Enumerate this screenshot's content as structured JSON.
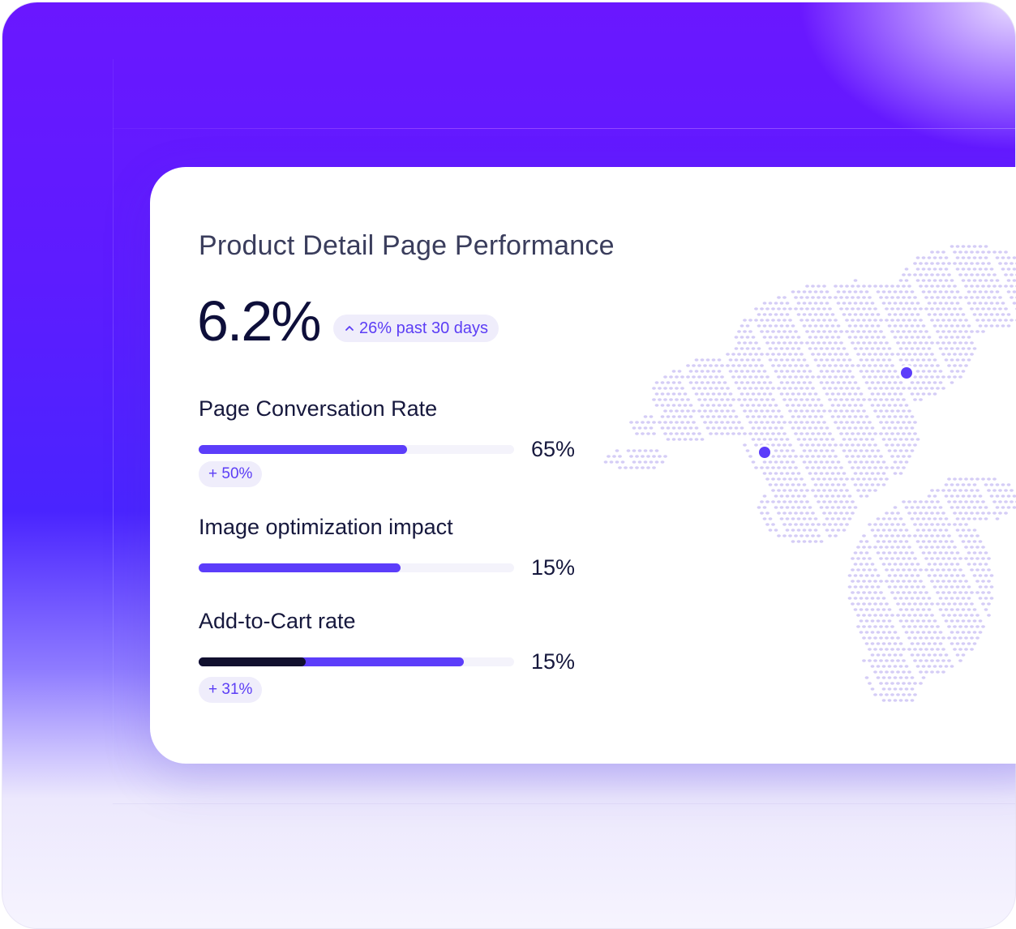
{
  "card": {
    "title": "Product Detail Page Performance",
    "headline_value": "6.2%",
    "trend_label": "26% past 30 days",
    "trend_icon": "chevron-up-icon"
  },
  "metrics": [
    {
      "label": "Page Conversation Rate",
      "value": "65%",
      "fill": 0.66,
      "chip": "+ 50%"
    },
    {
      "label": "Image optimization impact",
      "value": "15%",
      "fill": 0.64
    },
    {
      "label": "Add-to-Cart rate",
      "value": "15%",
      "fill": 0.84,
      "dark_fill": 0.34,
      "chip": "+ 31%"
    }
  ],
  "colors": {
    "accent": "#5c3dfa",
    "accent_text": "#5b3df5",
    "dark": "#11102e",
    "map_dots": "#d5cdf6",
    "chip_bg": "#efedfb"
  },
  "map": {
    "markers": 2
  }
}
